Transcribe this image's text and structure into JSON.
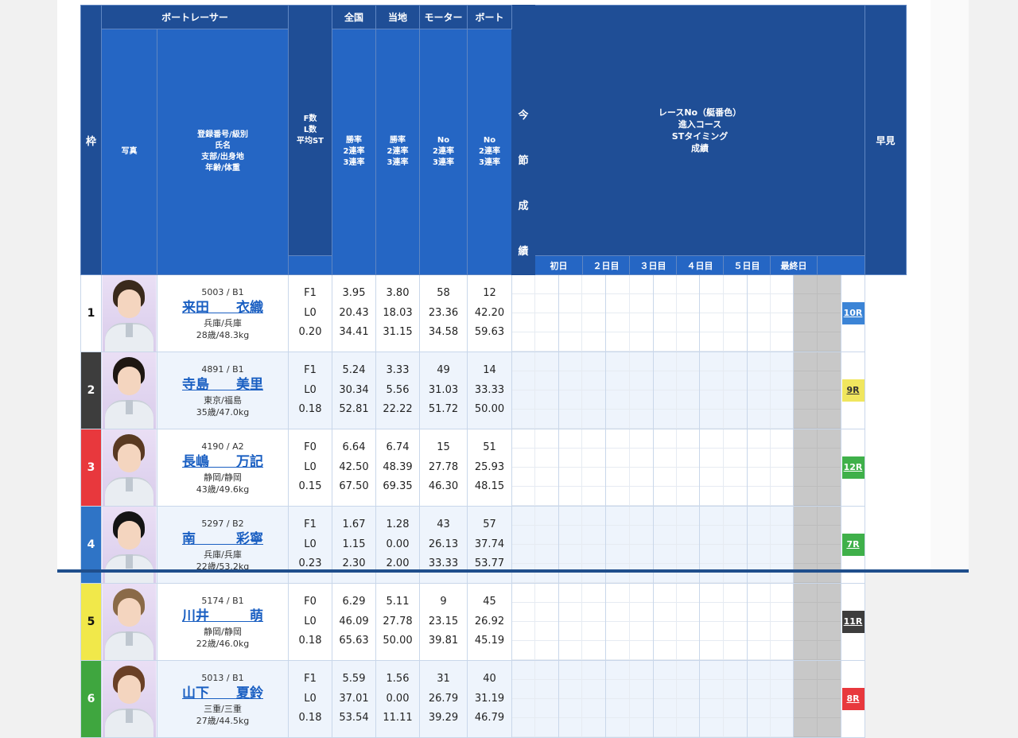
{
  "header": {
    "waku": "枠",
    "boat_racer": "ボートレーサー",
    "photo": "写真",
    "racer_info": [
      "登録番号/級別",
      "氏名",
      "支部/出身地",
      "年齢/体重"
    ],
    "fl": [
      "F数",
      "L数",
      "平均ST"
    ],
    "zenkoku": "全国",
    "touchi": "当地",
    "motor": "モーター",
    "boat": "ボート",
    "rate_sub": [
      "勝率",
      "2連率",
      "3連率"
    ],
    "no_sub": [
      "No",
      "2連率",
      "3連率"
    ],
    "race_info": [
      "レースNo（艇番色）",
      "進入コース",
      "STタイミング",
      "成績"
    ],
    "days": [
      "初日",
      "２日目",
      "３日目",
      "４日目",
      "５日目",
      "最終日"
    ],
    "hayami": "早見",
    "konsetsu": [
      "今",
      "節",
      "成",
      "績"
    ]
  },
  "racers": [
    {
      "waku": "1",
      "reg": "5003 / B1",
      "name": "来田　　衣織",
      "branch": "兵庫/兵庫",
      "age_weight": "28歳/48.3kg",
      "f": "F1",
      "l": "L0",
      "st": "0.20",
      "nat": [
        "3.95",
        "20.43",
        "34.41"
      ],
      "local": [
        "3.80",
        "18.03",
        "31.15"
      ],
      "motor": [
        "58",
        "23.36",
        "34.58"
      ],
      "boat": [
        "12",
        "42.20",
        "59.63"
      ],
      "hayami": "10R",
      "hair": "#3a2a1c"
    },
    {
      "waku": "2",
      "reg": "4891 / B1",
      "name": "寺島　　美里",
      "branch": "東京/福島",
      "age_weight": "35歳/47.0kg",
      "f": "F1",
      "l": "L0",
      "st": "0.18",
      "nat": [
        "5.24",
        "30.34",
        "52.81"
      ],
      "local": [
        "3.33",
        "5.56",
        "22.22"
      ],
      "motor": [
        "49",
        "31.03",
        "51.72"
      ],
      "boat": [
        "14",
        "33.33",
        "50.00"
      ],
      "hayami": "9R",
      "hair": "#1e1712"
    },
    {
      "waku": "3",
      "reg": "4190 / A2",
      "name": "長嶋　　万記",
      "branch": "静岡/静岡",
      "age_weight": "43歳/49.6kg",
      "f": "F0",
      "l": "L0",
      "st": "0.15",
      "nat": [
        "6.64",
        "42.50",
        "67.50"
      ],
      "local": [
        "6.74",
        "48.39",
        "69.35"
      ],
      "motor": [
        "15",
        "27.78",
        "46.30"
      ],
      "boat": [
        "51",
        "25.93",
        "48.15"
      ],
      "hayami": "12R",
      "hair": "#5a3a22"
    },
    {
      "waku": "4",
      "reg": "5297 / B2",
      "name": "南　　　彩寧",
      "branch": "兵庫/兵庫",
      "age_weight": "22歳/53.2kg",
      "f": "F1",
      "l": "L0",
      "st": "0.23",
      "nat": [
        "1.67",
        "1.15",
        "2.30"
      ],
      "local": [
        "1.28",
        "0.00",
        "2.00"
      ],
      "motor": [
        "43",
        "26.13",
        "33.33"
      ],
      "boat": [
        "57",
        "37.74",
        "53.77"
      ],
      "hayami": "7R",
      "hair": "#141414"
    },
    {
      "waku": "5",
      "reg": "5174 / B1",
      "name": "川井　　　萌",
      "branch": "静岡/静岡",
      "age_weight": "22歳/46.0kg",
      "f": "F0",
      "l": "L0",
      "st": "0.18",
      "nat": [
        "6.29",
        "46.09",
        "65.63"
      ],
      "local": [
        "5.11",
        "27.78",
        "50.00"
      ],
      "motor": [
        "9",
        "23.15",
        "39.81"
      ],
      "boat": [
        "45",
        "26.92",
        "45.19"
      ],
      "hayami": "11R",
      "hair": "#8a6a48"
    },
    {
      "waku": "6",
      "reg": "5013 / B1",
      "name": "山下　　夏鈴",
      "branch": "三重/三重",
      "age_weight": "27歳/44.5kg",
      "f": "F1",
      "l": "L0",
      "st": "0.18",
      "nat": [
        "5.59",
        "37.01",
        "53.54"
      ],
      "local": [
        "1.56",
        "0.00",
        "11.11"
      ],
      "motor": [
        "31",
        "26.79",
        "39.29"
      ],
      "boat": [
        "40",
        "31.19",
        "46.79"
      ],
      "hayami": "8R",
      "hair": "#6a4026"
    }
  ]
}
